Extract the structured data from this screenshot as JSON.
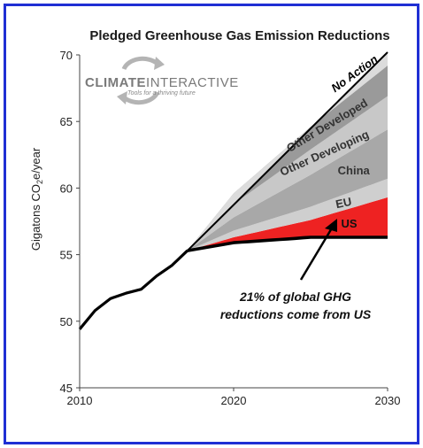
{
  "chart_data": {
    "type": "area",
    "title": "Pledged Greenhouse Gas Emission Reductions",
    "xlabel": "",
    "ylabel": "Gigatons CO",
    "ylabel_sub": "2",
    "ylabel_suffix": "e/year",
    "xlim": [
      2010,
      2030
    ],
    "ylim": [
      45,
      70
    ],
    "x_ticks": [
      2010,
      2020,
      2030
    ],
    "y_ticks": [
      45,
      50,
      55,
      60,
      65,
      70
    ],
    "grid": false,
    "legend": "none",
    "historical": {
      "x": [
        2010,
        2011,
        2012,
        2013,
        2014,
        2015,
        2016,
        2017
      ],
      "y": [
        49.4,
        50.8,
        51.7,
        52.1,
        52.4,
        53.4,
        54.2,
        55.3
      ]
    },
    "baseline": {
      "name": "No Action",
      "x": [
        2017,
        2030
      ],
      "y": [
        55.3,
        70.2
      ]
    },
    "pledged": {
      "x": [
        2017,
        2020,
        2025,
        2030
      ],
      "y": [
        55.3,
        55.9,
        56.3,
        56.3
      ]
    },
    "series": [
      {
        "name": "US",
        "x": [
          2017,
          2020,
          2025,
          2030
        ],
        "y": [
          55.3,
          56.3,
          57.6,
          59.3
        ],
        "color": "#ee2222"
      },
      {
        "name": "EU",
        "x": [
          2017,
          2020,
          2025,
          2030
        ],
        "y": [
          55.3,
          56.8,
          58.6,
          60.7
        ],
        "color": "#cfcfcf"
      },
      {
        "name": "China",
        "x": [
          2017,
          2020,
          2025,
          2030
        ],
        "y": [
          55.3,
          57.8,
          61.0,
          64.4
        ],
        "color": "#a8a8a8"
      },
      {
        "name": "Other Developing",
        "x": [
          2017,
          2020,
          2025,
          2030
        ],
        "y": [
          55.3,
          58.8,
          62.9,
          66.9
        ],
        "color": "#c8c8c8"
      },
      {
        "name": "Other Developed",
        "x": [
          2017,
          2020,
          2025,
          2030
        ],
        "y": [
          55.3,
          59.6,
          64.6,
          69.2
        ],
        "color": "#9a9a9a"
      },
      {
        "name": "No Action",
        "x": [
          2017,
          2020,
          2025,
          2030
        ],
        "y": [
          55.3,
          58.7,
          64.6,
          70.2
        ],
        "color": "#dcdcdc"
      }
    ],
    "annotation": {
      "line1": "21% of global GHG",
      "line2": "reductions come from US"
    }
  },
  "logo": {
    "name_part1": "CLIMATE",
    "name_part2": "INTERACTIVE",
    "tagline": "Tools for a thriving future",
    "color": "#7a7a7a"
  },
  "colors": {
    "frame": "#1f2fd4",
    "line": "#000000",
    "us": "#ee2222",
    "band_light": "#d6d6d6",
    "band_dark": "#a3a3a3"
  }
}
